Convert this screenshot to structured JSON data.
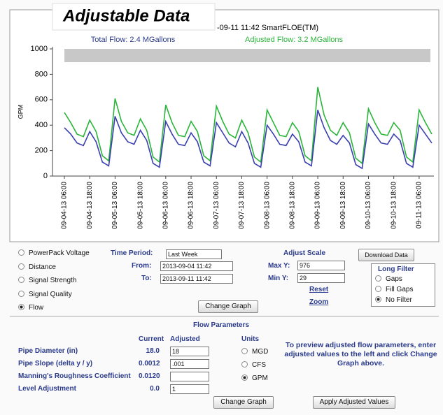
{
  "chart_data": {
    "type": "line",
    "title": "-09-11 11:42 SmartFLOE(TM)",
    "overlay_title": "Adjustable Data",
    "subtitles": [
      "Total Flow: 2.4 MGallons",
      "Adjusted Flow: 3.2 MGallons"
    ],
    "y_label": "GPM",
    "ylim": [
      0,
      1000
    ],
    "yticks": [
      0,
      200,
      400,
      600,
      800,
      1000
    ],
    "xlim": [
      "2013-09-04 06:00",
      "2013-09-11 12:00"
    ],
    "xticks": [
      {
        "value": "2013-09-04 06:00",
        "label": "09-04-13 06:00"
      },
      {
        "value": "2013-09-04 18:00",
        "label": "09-04-13 18:00"
      },
      {
        "value": "2013-09-05 06:00",
        "label": "09-05-13 06:00"
      },
      {
        "value": "2013-09-05 18:00",
        "label": "09-05-13 18:00"
      },
      {
        "value": "2013-09-06 06:00",
        "label": "09-06-13 06:00"
      },
      {
        "value": "2013-09-06 18:00",
        "label": "09-06-13 18:00"
      },
      {
        "value": "2013-09-07 06:00",
        "label": "09-07-13 06:00"
      },
      {
        "value": "2013-09-07 18:00",
        "label": "09-07-13 18:00"
      },
      {
        "value": "2013-09-08 06:00",
        "label": "09-08-13 06:00"
      },
      {
        "value": "2013-09-08 18:00",
        "label": "09-08-13 18:00"
      },
      {
        "value": "2013-09-09 06:00",
        "label": "09-09-13 06:00"
      },
      {
        "value": "2013-09-09 18:00",
        "label": "09-09-13 18:00"
      },
      {
        "value": "2013-09-10 06:00",
        "label": "09-10-13 06:00"
      },
      {
        "value": "2013-09-10 18:00",
        "label": "09-10-13 18:00"
      },
      {
        "value": "2013-09-11 06:00",
        "label": "09-11-13 06:00"
      }
    ],
    "x": [
      "2013-09-04 06:00",
      "2013-09-04 09:00",
      "2013-09-04 12:00",
      "2013-09-04 15:00",
      "2013-09-04 18:00",
      "2013-09-04 21:00",
      "2013-09-05 00:00",
      "2013-09-05 03:00",
      "2013-09-05 06:00",
      "2013-09-05 09:00",
      "2013-09-05 12:00",
      "2013-09-05 15:00",
      "2013-09-05 18:00",
      "2013-09-05 21:00",
      "2013-09-06 00:00",
      "2013-09-06 03:00",
      "2013-09-06 06:00",
      "2013-09-06 09:00",
      "2013-09-06 12:00",
      "2013-09-06 15:00",
      "2013-09-06 18:00",
      "2013-09-06 21:00",
      "2013-09-07 00:00",
      "2013-09-07 03:00",
      "2013-09-07 06:00",
      "2013-09-07 09:00",
      "2013-09-07 12:00",
      "2013-09-07 15:00",
      "2013-09-07 18:00",
      "2013-09-07 21:00",
      "2013-09-08 00:00",
      "2013-09-08 03:00",
      "2013-09-08 06:00",
      "2013-09-08 09:00",
      "2013-09-08 12:00",
      "2013-09-08 15:00",
      "2013-09-08 18:00",
      "2013-09-08 21:00",
      "2013-09-09 00:00",
      "2013-09-09 03:00",
      "2013-09-09 06:00",
      "2013-09-09 09:00",
      "2013-09-09 12:00",
      "2013-09-09 15:00",
      "2013-09-09 18:00",
      "2013-09-09 21:00",
      "2013-09-10 00:00",
      "2013-09-10 03:00",
      "2013-09-10 06:00",
      "2013-09-10 09:00",
      "2013-09-10 12:00",
      "2013-09-10 15:00",
      "2013-09-10 18:00",
      "2013-09-10 21:00",
      "2013-09-11 00:00",
      "2013-09-11 03:00",
      "2013-09-11 06:00",
      "2013-09-11 09:00",
      "2013-09-11 12:00"
    ],
    "series": [
      {
        "color": "#2ab53a",
        "values": [
          500,
          420,
          330,
          310,
          440,
          350,
          160,
          120,
          610,
          430,
          340,
          320,
          450,
          360,
          150,
          110,
          560,
          420,
          320,
          310,
          430,
          350,
          160,
          120,
          550,
          430,
          330,
          300,
          440,
          340,
          150,
          110,
          520,
          420,
          320,
          310,
          420,
          350,
          160,
          120,
          700,
          480,
          360,
          320,
          420,
          340,
          140,
          100,
          530,
          420,
          330,
          320,
          420,
          360,
          150,
          110,
          520,
          420,
          330
        ]
      },
      {
        "color": "#3a3fb0",
        "values": [
          380,
          330,
          260,
          240,
          350,
          270,
          110,
          80,
          470,
          340,
          270,
          250,
          360,
          280,
          100,
          70,
          430,
          330,
          250,
          240,
          340,
          270,
          110,
          80,
          420,
          340,
          260,
          230,
          350,
          260,
          100,
          70,
          400,
          330,
          250,
          240,
          330,
          270,
          110,
          80,
          520,
          380,
          280,
          250,
          320,
          260,
          90,
          60,
          410,
          330,
          260,
          250,
          330,
          280,
          100,
          70,
          400,
          330,
          260
        ]
      }
    ]
  },
  "data_type": [
    {
      "label": "PowerPack Voltage",
      "checked": false
    },
    {
      "label": "Distance",
      "checked": false
    },
    {
      "label": "Signal Strength",
      "checked": false
    },
    {
      "label": "Signal Quality",
      "checked": false
    },
    {
      "label": "Flow",
      "checked": true
    }
  ],
  "time_period": {
    "label": "Time Period:",
    "value": "Last Week",
    "from_label": "From:",
    "from": "2013-09-04 11:42",
    "to_label": "To:",
    "to": "2013-09-11 11:42"
  },
  "adjust_scale": {
    "title": "Adjust Scale",
    "max_label": "Max Y:",
    "max": "976",
    "min_label": "Min Y:",
    "min": "29",
    "reset": "Reset",
    "zoom": "Zoom"
  },
  "download": "Download Data",
  "long_filter": {
    "title": "Long Filter",
    "options": [
      {
        "label": "Gaps",
        "checked": false
      },
      {
        "label": "Fill Gaps",
        "checked": false
      },
      {
        "label": "No Filter",
        "checked": true
      }
    ]
  },
  "change_graph": "Change Graph",
  "flow_parameters": {
    "title": "Flow Parameters",
    "headers": [
      "Current",
      "Adjusted"
    ],
    "rows": [
      {
        "label": "Pipe Diameter (in)",
        "current": "18.0",
        "adjusted": "18"
      },
      {
        "label": "Pipe Slope (delta y / y)",
        "current": "0.0012",
        "adjusted": ".001"
      },
      {
        "label": "Manning's Roughness Coefficient",
        "current": "0.0120",
        "adjusted": ""
      },
      {
        "label": "Level Adjustment",
        "current": "0.0",
        "adjusted": "1"
      }
    ],
    "units_title": "Units",
    "units": [
      {
        "label": "MGD",
        "checked": false
      },
      {
        "label": "CFS",
        "checked": false
      },
      {
        "label": "GPM",
        "checked": true
      }
    ],
    "note": "To preview adjusted flow parameters, enter adjusted values to the left and click Change Graph above.",
    "change_graph": "Change Graph",
    "apply": "Apply Adjusted Values"
  }
}
